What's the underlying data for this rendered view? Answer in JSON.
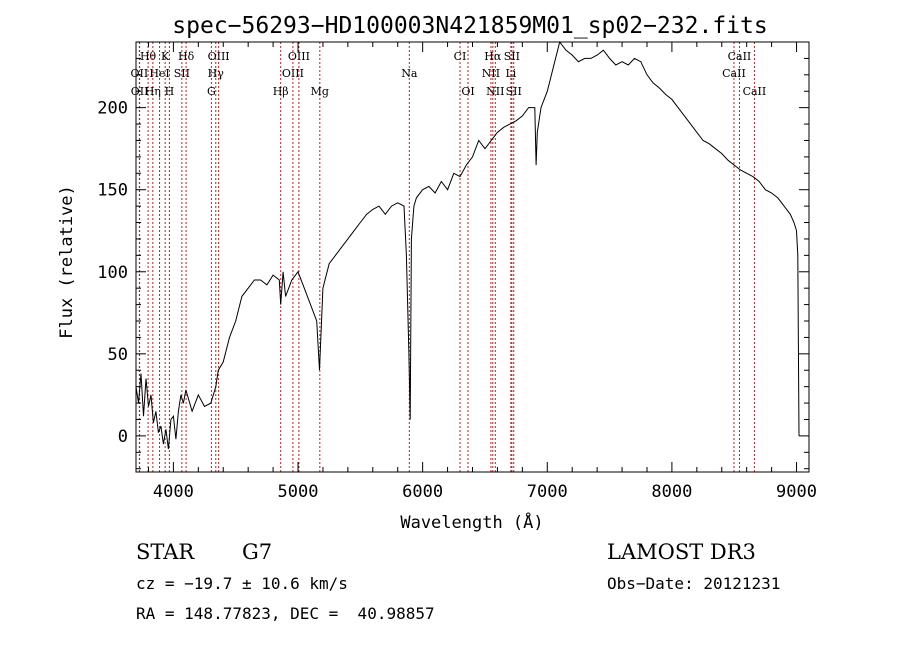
{
  "chart_data": {
    "type": "line",
    "title": "spec−56293−HD100003N421859M01_sp02−232.fits",
    "xlabel": "Wavelength (Å)",
    "ylabel": "Flux (relative)",
    "xlim": [
      3700,
      9100
    ],
    "ylim": [
      -22,
      240
    ],
    "x_ticks": [
      4000,
      5000,
      6000,
      7000,
      8000,
      9000
    ],
    "y_ticks": [
      0,
      50,
      100,
      150,
      200
    ],
    "grid": false,
    "line_color": "#000000",
    "marker_color": "#b22222",
    "series": [
      {
        "x": [
          3700,
          3720,
          3740,
          3760,
          3780,
          3800,
          3820,
          3840,
          3860,
          3880,
          3900,
          3920,
          3940,
          3960,
          3980,
          4000,
          4020,
          4040,
          4060,
          4080,
          4100,
          4150,
          4200,
          4250,
          4300,
          4340,
          4360,
          4400,
          4450,
          4500,
          4550,
          4600,
          4650,
          4700,
          4750,
          4800,
          4850,
          4861,
          4880,
          4900,
          4950,
          5000,
          5050,
          5100,
          5150,
          5172,
          5200,
          5250,
          5300,
          5350,
          5400,
          5450,
          5500,
          5550,
          5600,
          5650,
          5700,
          5750,
          5800,
          5850,
          5870,
          5890,
          5900,
          5910,
          5930,
          5950,
          6000,
          6050,
          6100,
          6150,
          6200,
          6250,
          6300,
          6350,
          6400,
          6450,
          6500,
          6550,
          6600,
          6650,
          6700,
          6750,
          6800,
          6850,
          6900,
          6910,
          6920,
          6950,
          7000,
          7050,
          7100,
          7150,
          7200,
          7250,
          7300,
          7350,
          7400,
          7450,
          7500,
          7550,
          7600,
          7650,
          7700,
          7750,
          7800,
          7850,
          7900,
          7950,
          8000,
          8050,
          8100,
          8150,
          8200,
          8250,
          8300,
          8350,
          8400,
          8450,
          8500,
          8550,
          8600,
          8650,
          8700,
          8750,
          8800,
          8850,
          8900,
          8950,
          8980,
          9000,
          9010,
          9020
        ],
        "y": [
          30,
          20,
          38,
          12,
          35,
          18,
          25,
          8,
          15,
          2,
          6,
          -5,
          4,
          -8,
          10,
          12,
          -2,
          15,
          25,
          20,
          28,
          15,
          25,
          18,
          20,
          30,
          40,
          45,
          60,
          70,
          85,
          90,
          95,
          95,
          92,
          98,
          95,
          80,
          100,
          85,
          95,
          100,
          90,
          80,
          70,
          40,
          90,
          105,
          110,
          115,
          120,
          125,
          130,
          135,
          138,
          140,
          135,
          140,
          142,
          140,
          110,
          50,
          10,
          120,
          140,
          145,
          150,
          152,
          148,
          155,
          150,
          160,
          158,
          165,
          170,
          180,
          175,
          180,
          185,
          188,
          190,
          192,
          195,
          200,
          200,
          165,
          185,
          200,
          210,
          225,
          240,
          235,
          232,
          228,
          230,
          230,
          232,
          235,
          230,
          226,
          228,
          226,
          230,
          228,
          220,
          215,
          212,
          208,
          205,
          200,
          195,
          190,
          185,
          180,
          178,
          175,
          172,
          168,
          165,
          162,
          160,
          158,
          155,
          150,
          148,
          145,
          140,
          135,
          130,
          125,
          110,
          0
        ]
      }
    ],
    "lines": [
      {
        "label": "Hθ",
        "x": 3797,
        "row": 1
      },
      {
        "label": "K",
        "x": 3934,
        "row": 1
      },
      {
        "label": "Hδ",
        "x": 4102,
        "row": 1
      },
      {
        "label": "OIII",
        "x": 4363,
        "row": 1
      },
      {
        "label": "OIII",
        "x": 5007,
        "row": 1
      },
      {
        "label": "CI",
        "x": 6300,
        "row": 1
      },
      {
        "label": "Hα",
        "x": 6563,
        "row": 1
      },
      {
        "label": "SII",
        "x": 6716,
        "row": 1
      },
      {
        "label": "CaII",
        "x": 8542,
        "row": 1
      },
      {
        "label": "OII",
        "x": 3727,
        "row": 2
      },
      {
        "label": "HeI",
        "x": 3889,
        "row": 2
      },
      {
        "label": "SII",
        "x": 4068,
        "row": 2
      },
      {
        "label": "Hγ",
        "x": 4340,
        "row": 2
      },
      {
        "label": "OIII",
        "x": 4959,
        "row": 2
      },
      {
        "label": "Na",
        "x": 5893,
        "row": 2
      },
      {
        "label": "NII",
        "x": 6548,
        "row": 2
      },
      {
        "label": "Li",
        "x": 6708,
        "row": 2
      },
      {
        "label": "CaII",
        "x": 8498,
        "row": 2
      },
      {
        "label": "OII",
        "x": 3729,
        "row": 3
      },
      {
        "label": "Hη",
        "x": 3835,
        "row": 3
      },
      {
        "label": "H",
        "x": 3968,
        "row": 3
      },
      {
        "label": "G",
        "x": 4305,
        "row": 3
      },
      {
        "label": "Hβ",
        "x": 4861,
        "row": 3
      },
      {
        "label": "Mg",
        "x": 5175,
        "row": 3
      },
      {
        "label": "OI",
        "x": 6364,
        "row": 3
      },
      {
        "label": "NII",
        "x": 6583,
        "row": 3
      },
      {
        "label": "SII",
        "x": 6731,
        "row": 3
      },
      {
        "label": "CaII",
        "x": 8662,
        "row": 3
      }
    ]
  },
  "info": {
    "object_class": "STAR",
    "subclass": "G7",
    "survey": "LAMOST DR3",
    "redshift": "cz = −19.7 ± 10.6 km/s",
    "obs_date": "Obs−Date: 20121231",
    "coords": "RA = 148.77823, DEC =  40.98857"
  }
}
